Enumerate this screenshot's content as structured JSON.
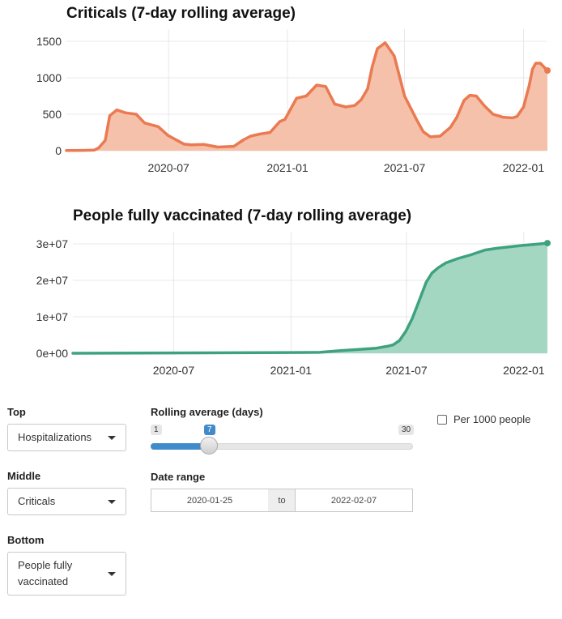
{
  "chart_data": [
    {
      "type": "area",
      "title": "Criticals (7-day rolling average)",
      "xlabel": "",
      "ylabel": "",
      "xtick_labels": [
        "2020-07",
        "2021-01",
        "2021-07",
        "2022-01"
      ],
      "xtick_dates": [
        "2020-07-01",
        "2021-01-01",
        "2021-07-01",
        "2022-01-01"
      ],
      "x_range": [
        "2020-01-25",
        "2022-02-07"
      ],
      "ylim": [
        0,
        1600
      ],
      "yticks": [
        0,
        500,
        1000,
        1500
      ],
      "ytick_labels": [
        "0",
        "500",
        "1000",
        "1500"
      ],
      "grid": true,
      "line_color": "#ea7a52",
      "fill_color": "#f5c1aa",
      "x": [
        "2020-01-25",
        "2020-02-20",
        "2020-03-08",
        "2020-03-15",
        "2020-03-25",
        "2020-04-01",
        "2020-04-12",
        "2020-04-25",
        "2020-05-12",
        "2020-05-25",
        "2020-06-15",
        "2020-06-30",
        "2020-07-25",
        "2020-08-05",
        "2020-08-25",
        "2020-09-15",
        "2020-10-10",
        "2020-10-25",
        "2020-11-05",
        "2020-11-20",
        "2020-12-05",
        "2020-12-20",
        "2020-12-28",
        "2021-01-15",
        "2021-01-30",
        "2021-02-15",
        "2021-03-01",
        "2021-03-15",
        "2021-04-01",
        "2021-04-15",
        "2021-04-25",
        "2021-05-05",
        "2021-05-12",
        "2021-05-20",
        "2021-06-01",
        "2021-06-15",
        "2021-07-01",
        "2021-07-20",
        "2021-07-30",
        "2021-08-10",
        "2021-08-25",
        "2021-09-10",
        "2021-09-20",
        "2021-10-01",
        "2021-10-10",
        "2021-10-20",
        "2021-11-01",
        "2021-11-15",
        "2021-11-30",
        "2021-12-15",
        "2021-12-22",
        "2022-01-01",
        "2022-01-10",
        "2022-01-15",
        "2022-01-20",
        "2022-01-27",
        "2022-02-07"
      ],
      "values": [
        2,
        5,
        8,
        40,
        140,
        480,
        560,
        520,
        500,
        380,
        330,
        210,
        90,
        80,
        85,
        50,
        60,
        150,
        200,
        230,
        250,
        400,
        430,
        720,
        750,
        900,
        880,
        640,
        600,
        620,
        700,
        850,
        1150,
        1400,
        1480,
        1300,
        750,
        420,
        260,
        190,
        200,
        320,
        460,
        690,
        760,
        750,
        620,
        500,
        460,
        450,
        470,
        600,
        900,
        1120,
        1200,
        1200,
        1100
      ],
      "end_marker": true
    },
    {
      "type": "area",
      "title": "People fully vaccinated (7-day rolling average)",
      "xlabel": "",
      "ylabel": "",
      "xtick_labels": [
        "2020-07",
        "2021-01",
        "2021-07",
        "2022-01"
      ],
      "xtick_dates": [
        "2020-07-01",
        "2021-01-01",
        "2021-07-01",
        "2022-01-01"
      ],
      "x_range": [
        "2020-01-25",
        "2022-02-07"
      ],
      "ylim": [
        0,
        32000000
      ],
      "yticks": [
        0,
        10000000,
        20000000,
        30000000
      ],
      "ytick_labels": [
        "0e+00",
        "1e+07",
        "2e+07",
        "3e+07"
      ],
      "grid": true,
      "line_color": "#3fa27f",
      "fill_color": "#a3d7c2",
      "x": [
        "2020-01-25",
        "2020-07-01",
        "2021-01-01",
        "2021-02-15",
        "2021-03-20",
        "2021-04-20",
        "2021-05-15",
        "2021-06-01",
        "2021-06-10",
        "2021-06-20",
        "2021-06-30",
        "2021-07-10",
        "2021-07-20",
        "2021-08-01",
        "2021-08-10",
        "2021-08-20",
        "2021-09-01",
        "2021-09-20",
        "2021-10-10",
        "2021-11-01",
        "2021-11-20",
        "2021-12-10",
        "2022-01-01",
        "2022-01-20",
        "2022-02-07"
      ],
      "values": [
        0,
        100000,
        200000,
        250000,
        700000,
        1100000,
        1400000,
        1900000,
        2300000,
        3500000,
        6000000,
        9500000,
        14000000,
        19500000,
        22000000,
        23500000,
        24800000,
        26000000,
        27000000,
        28300000,
        28800000,
        29200000,
        29600000,
        29900000,
        30200000
      ],
      "end_marker": true
    }
  ],
  "controls": {
    "top": {
      "label": "Top",
      "value": "Hospitalizations"
    },
    "middle": {
      "label": "Middle",
      "value": "Criticals"
    },
    "bottom": {
      "label": "Bottom",
      "value_line1": "People fully",
      "value_line2": "vaccinated"
    },
    "rolling": {
      "label": "Rolling average (days)",
      "min": "1",
      "max": "30",
      "value": "7",
      "fraction": 0.207
    },
    "date_range": {
      "label": "Date range",
      "start": "2020-01-25",
      "end": "2022-02-07",
      "separator": "to"
    },
    "per1000": {
      "label": "Per 1000 people",
      "checked": false
    }
  }
}
